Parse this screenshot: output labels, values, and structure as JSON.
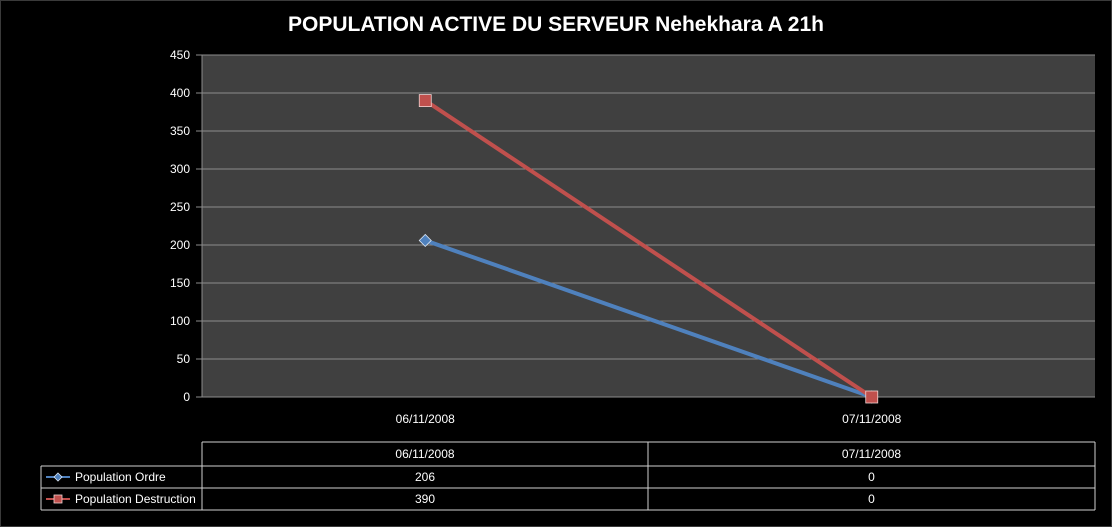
{
  "chart_data": {
    "type": "line",
    "title": "POPULATION ACTIVE DU SERVEUR Nehekhara A 21h",
    "categories": [
      "06/11/2008",
      "07/11/2008"
    ],
    "series": [
      {
        "name": "Population Ordre",
        "values": [
          206,
          0
        ],
        "color": "#4f81bd",
        "marker": "diamond"
      },
      {
        "name": "Population Destruction",
        "values": [
          390,
          0
        ],
        "color": "#c0504d",
        "marker": "square"
      }
    ],
    "ylim": [
      0,
      450
    ],
    "yticks": [
      "0",
      "50",
      "100",
      "150",
      "200",
      "250",
      "300",
      "350",
      "400",
      "450"
    ],
    "grid": true,
    "legend": "data-table",
    "table": {
      "header": [
        "06/11/2008",
        "07/11/2008"
      ],
      "rows": [
        {
          "label": "Population Ordre",
          "cells": [
            "206",
            "0"
          ]
        },
        {
          "label": "Population Destruction",
          "cells": [
            "390",
            "0"
          ]
        }
      ]
    },
    "colors": {
      "background": "#000000",
      "plot_area": "#404040",
      "gridline": "#8c8c8c",
      "text": "#ffffff"
    }
  }
}
